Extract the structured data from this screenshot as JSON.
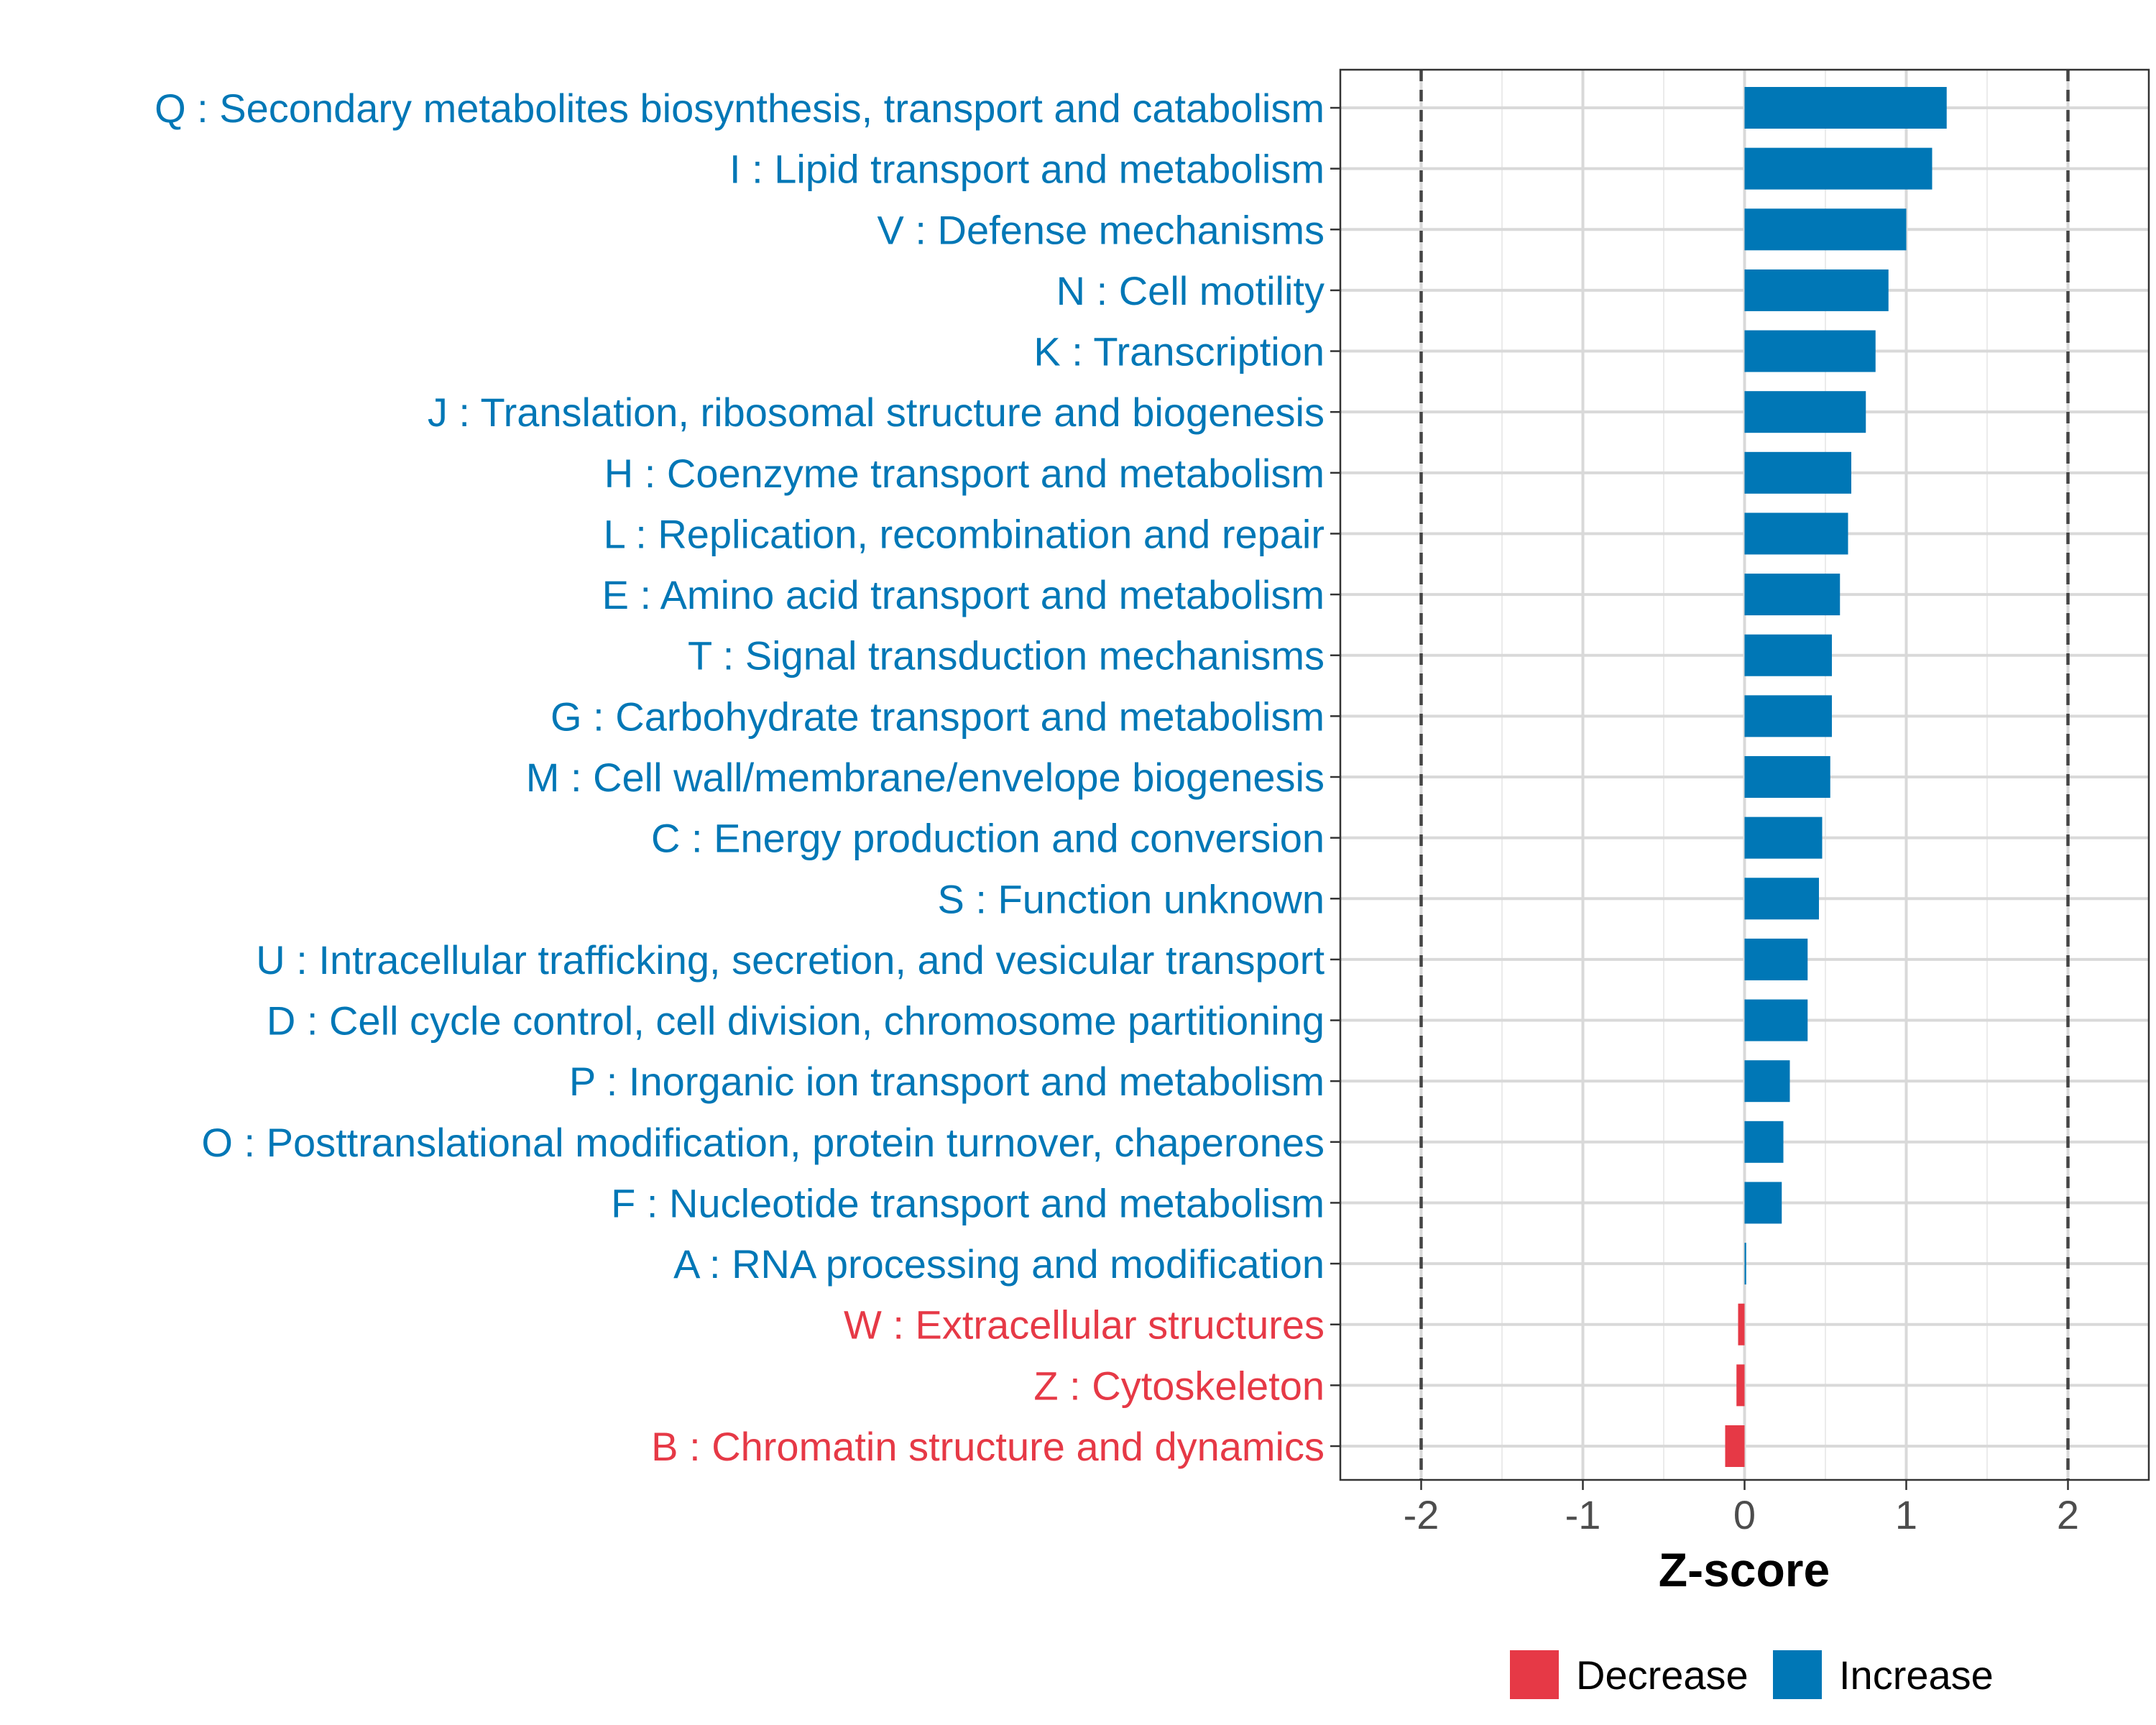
{
  "chart_data": {
    "type": "bar",
    "orientation": "horizontal",
    "xlabel": "Z-score",
    "ylabel": "",
    "xlim": [
      -2.5,
      2.5
    ],
    "xticks": [
      -2,
      -1,
      0,
      1,
      2
    ],
    "xtick_labels": [
      "-2",
      "-1",
      "0",
      "1",
      "2"
    ],
    "reference_lines": [
      -2,
      2
    ],
    "grid": true,
    "legend_position": "bottom",
    "colors": {
      "Decrease": "#E63946",
      "Increase": "#0077B6"
    },
    "categories": [
      "Q : Secondary metabolites biosynthesis, transport and catabolism",
      "I : Lipid transport and metabolism",
      "V : Defense mechanisms",
      "N : Cell motility",
      "K : Transcription",
      "J : Translation, ribosomal structure and biogenesis",
      "H : Coenzyme transport and metabolism",
      "L : Replication, recombination and repair",
      "E : Amino acid transport and metabolism",
      "T : Signal transduction mechanisms",
      "G : Carbohydrate transport and metabolism",
      "M : Cell wall/membrane/envelope biogenesis",
      "C : Energy production and conversion",
      "S : Function unknown",
      "U : Intracellular trafficking, secretion, and vesicular transport",
      "D : Cell cycle control, cell division, chromosome partitioning",
      "P : Inorganic ion transport and metabolism",
      "O : Posttranslational modification, protein turnover, chaperones",
      "F : Nucleotide transport and metabolism",
      "A : RNA processing and modification",
      "W : Extracellular structures",
      "Z : Cytoskeleton",
      "B : Chromatin structure and dynamics"
    ],
    "values": [
      1.25,
      1.16,
      1.0,
      0.89,
      0.81,
      0.75,
      0.66,
      0.64,
      0.59,
      0.54,
      0.54,
      0.53,
      0.48,
      0.46,
      0.39,
      0.39,
      0.28,
      0.24,
      0.23,
      0.01,
      -0.04,
      -0.05,
      -0.12
    ],
    "groups": [
      "Increase",
      "Increase",
      "Increase",
      "Increase",
      "Increase",
      "Increase",
      "Increase",
      "Increase",
      "Increase",
      "Increase",
      "Increase",
      "Increase",
      "Increase",
      "Increase",
      "Increase",
      "Increase",
      "Increase",
      "Increase",
      "Increase",
      "Increase",
      "Decrease",
      "Decrease",
      "Decrease"
    ],
    "legend": [
      "Decrease",
      "Increase"
    ]
  }
}
